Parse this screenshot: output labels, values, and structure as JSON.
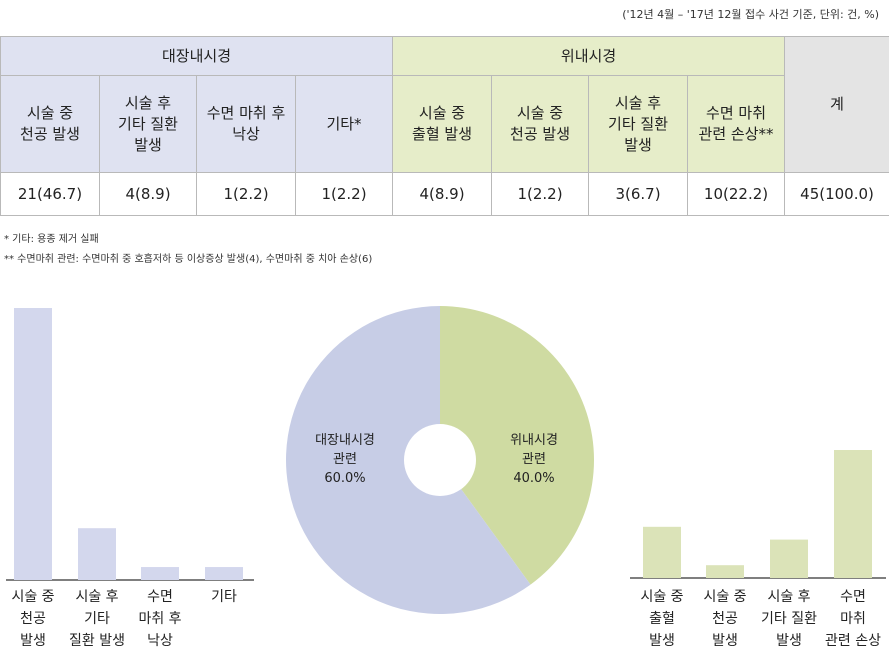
{
  "source_note": "('12년 4월 – '17년 12월 접수 사건 기준, 단위: 건, %)",
  "table": {
    "groups": [
      {
        "label": "대장내시경",
        "span": 4
      },
      {
        "label": "위내시경",
        "span": 4
      }
    ],
    "total_label": "계",
    "headers": [
      [
        "시술 중",
        "천공 발생"
      ],
      [
        "시술 후",
        "기타 질환",
        "발생"
      ],
      [
        "수면 마취 후",
        "낙상"
      ],
      [
        "기타*"
      ],
      [
        "시술 중",
        "출혈 발생"
      ],
      [
        "시술 중",
        "천공 발생"
      ],
      [
        "시술 후",
        "기타 질환",
        "발생"
      ],
      [
        "수면 마취",
        "관련 손상**"
      ]
    ],
    "values": [
      "21(46.7)",
      "4(8.9)",
      "1(2.2)",
      "1(2.2)",
      "4(8.9)",
      "1(2.2)",
      "3(6.7)",
      "10(22.2)",
      "45(100.0)"
    ]
  },
  "footnotes": [
    "*   기타: 용종 제거 실패",
    "**  수면마취 관련: 수면마취 중 호흡저하 등 이상증상 발생(4), 수면마취 중 치아 손상(6)"
  ],
  "chart_data": [
    {
      "type": "bar",
      "categories": [
        "시술 중 천공 발생",
        "시술 후 기타 질환 발생",
        "수면 마취 후 낙상",
        "기타"
      ],
      "category_lines": [
        [
          "시술 중",
          "천공",
          "발생"
        ],
        [
          "시술 후",
          "기타",
          "질환 발생"
        ],
        [
          "수면",
          "마취 후",
          "낙상"
        ],
        [
          "기타"
        ]
      ],
      "values": [
        21,
        4,
        1,
        1
      ],
      "color": "#d3d7ed"
    },
    {
      "type": "pie",
      "labels": [
        "대장내시경 관련",
        "위내시경 관련"
      ],
      "label_lines": [
        [
          "대장내시경",
          "관련",
          "60.0%"
        ],
        [
          "위내시경",
          "관련",
          "40.0%"
        ]
      ],
      "values": [
        60.0,
        40.0
      ],
      "colors": [
        "#c7cde6",
        "#cfdba2"
      ],
      "donut": true
    },
    {
      "type": "bar",
      "categories": [
        "시술 중 출혈 발생",
        "시술 중 천공 발생",
        "시술 후 기타 질환 발생",
        "수면 마취 관련 손상"
      ],
      "category_lines": [
        [
          "시술 중",
          "출혈",
          "발생"
        ],
        [
          "시술 중",
          "천공",
          "발생"
        ],
        [
          "시술 후",
          "기타 질환",
          "발생"
        ],
        [
          "수면",
          "마취",
          "관련 손상"
        ]
      ],
      "values": [
        4,
        1,
        3,
        10
      ],
      "color": "#dbe3b8"
    }
  ]
}
